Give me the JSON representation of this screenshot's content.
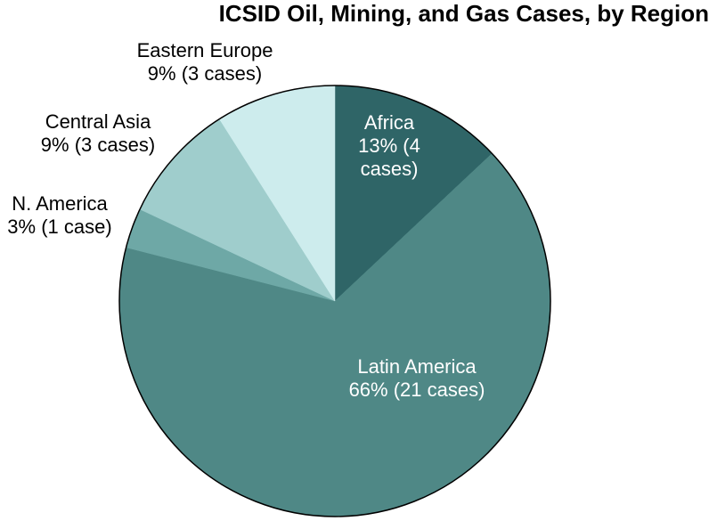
{
  "chart_data": {
    "type": "pie",
    "title": "ICSID Oil, Mining, and Gas Cases, by Region",
    "slices": [
      {
        "name": "Africa",
        "value": 13,
        "cases": 4,
        "label_lines": [
          "Africa",
          "13% (4",
          "cases)"
        ],
        "color": "#2f6567",
        "label_color": "#ffffff"
      },
      {
        "name": "Latin America",
        "value": 66,
        "cases": 21,
        "label_lines": [
          "Latin America",
          "66% (21 cases)"
        ],
        "color": "#4f8886",
        "label_color": "#ffffff"
      },
      {
        "name": "N. America",
        "value": 3,
        "cases": 1,
        "label_lines": [
          "N. America",
          "3% (1 case)"
        ],
        "color": "#6ea8a6",
        "label_color": "#000000"
      },
      {
        "name": "Central Asia",
        "value": 9,
        "cases": 3,
        "label_lines": [
          "Central Asia",
          "9% (3 cases)"
        ],
        "color": "#9fcdcc",
        "label_color": "#000000"
      },
      {
        "name": "Eastern Europe",
        "value": 9,
        "cases": 3,
        "label_lines": [
          "Eastern Europe",
          "9% (3 cases)"
        ],
        "color": "#cdeced",
        "label_color": "#000000"
      }
    ],
    "start_angle": "12 o'clock",
    "direction": "clockwise",
    "legend": "none"
  }
}
